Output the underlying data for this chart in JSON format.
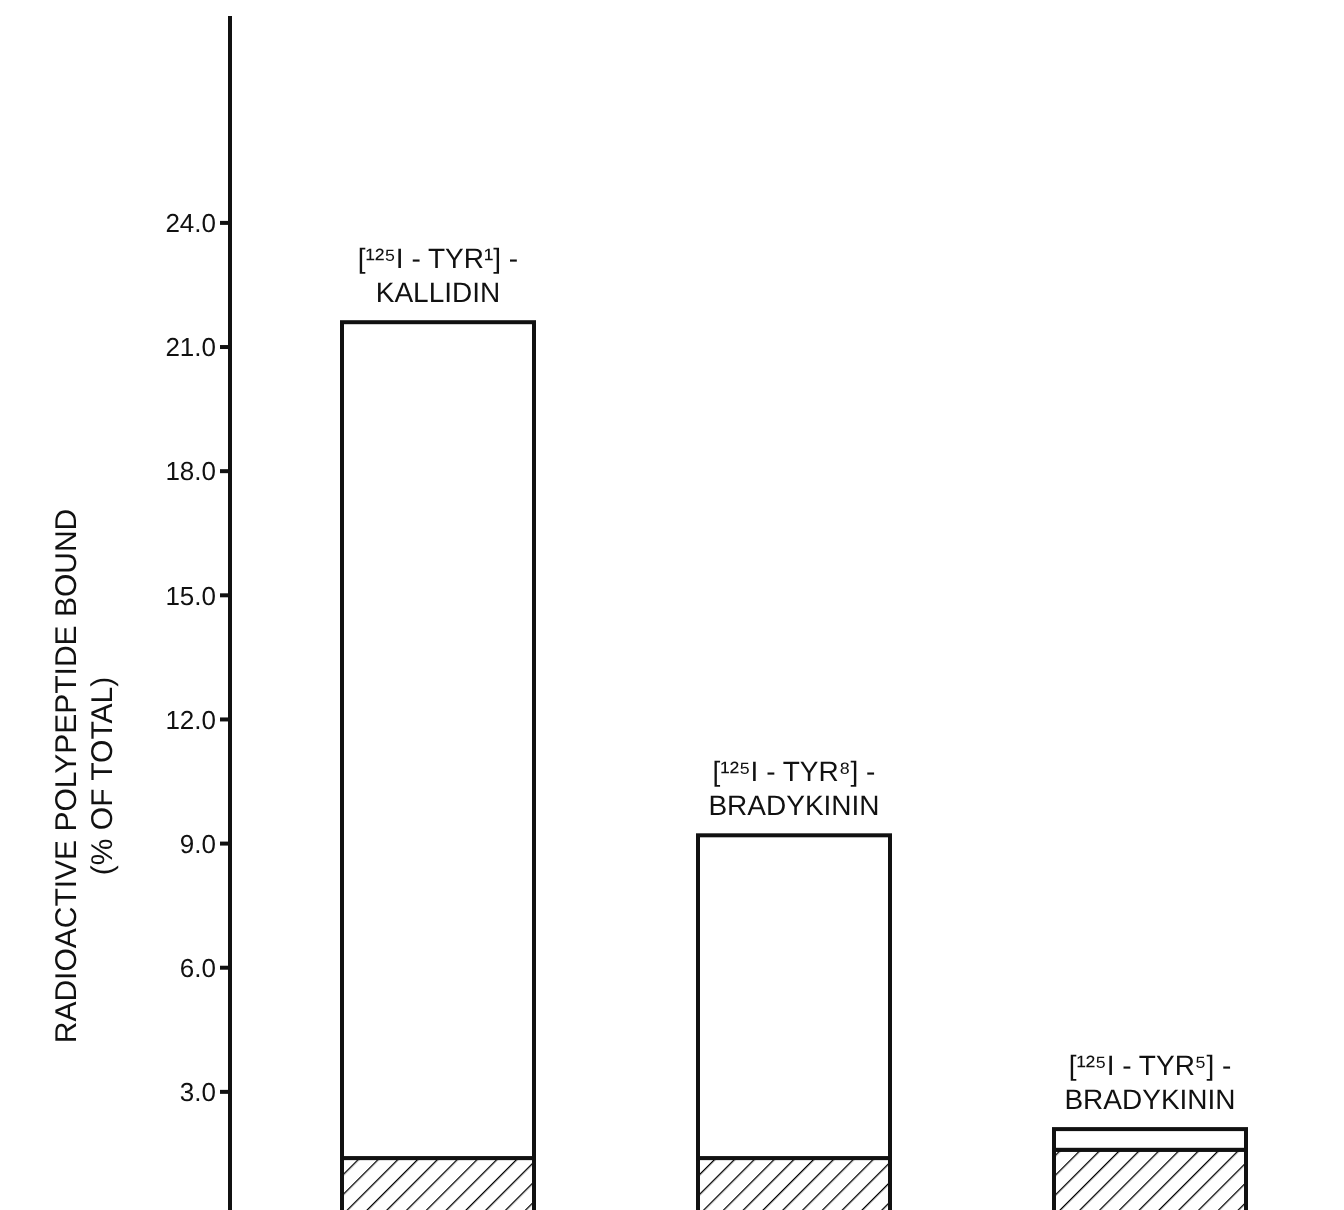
{
  "chart_data": {
    "type": "bar",
    "stacked": true,
    "ylabel": "RADIOACTIVE POLYPEPTIDE BOUND\n(% OF TOTAL)",
    "categories": [
      "[¹²⁵I - TYR¹] -\nKALLIDIN",
      "[¹²⁵I - TYR⁸] -\nBRADYKININ",
      "[¹²⁵I - TYR⁵] -\nBRADYKININ"
    ],
    "series": [
      {
        "color": "#000000",
        "values": [
          1.4,
          1.4,
          1.6
        ]
      },
      {
        "color": "#ffffff",
        "values": [
          20.2,
          7.8,
          0.5
        ]
      }
    ],
    "ylim": [
      0,
      29
    ],
    "yticks": [
      {
        "value": 3,
        "label": "3.0"
      },
      {
        "value": 6,
        "label": "6.0"
      },
      {
        "value": 9,
        "label": "9.0"
      },
      {
        "value": 12,
        "label": "12.0"
      },
      {
        "value": 15,
        "label": "15.0"
      },
      {
        "value": 18,
        "label": "18.0"
      },
      {
        "value": 21,
        "label": "21.0"
      },
      {
        "value": 24,
        "label": "24.0"
      }
    ],
    "grid": false,
    "legend": false
  }
}
